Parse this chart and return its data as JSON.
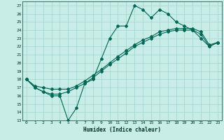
{
  "title": "",
  "xlabel": "Humidex (Indice chaleur)",
  "bg_color": "#c8ece6",
  "grid_color": "#a0d4cc",
  "line_color": "#006655",
  "xlim": [
    -0.5,
    23.5
  ],
  "ylim": [
    13,
    27.5
  ],
  "xticks": [
    0,
    1,
    2,
    3,
    4,
    5,
    6,
    7,
    8,
    9,
    10,
    11,
    12,
    13,
    14,
    15,
    16,
    17,
    18,
    19,
    20,
    21,
    22,
    23
  ],
  "yticks": [
    13,
    14,
    15,
    16,
    17,
    18,
    19,
    20,
    21,
    22,
    23,
    24,
    25,
    26,
    27
  ],
  "line1_x": [
    0,
    1,
    2,
    3,
    4,
    5,
    6,
    7,
    8,
    9,
    10,
    11,
    12,
    13,
    14,
    15,
    16,
    17,
    18,
    19,
    20,
    21,
    22,
    23
  ],
  "line1_y": [
    18,
    17,
    16.5,
    16,
    16,
    13,
    14.5,
    17.5,
    18,
    20.5,
    23,
    24.5,
    24.5,
    27,
    26.5,
    25.5,
    26.5,
    26,
    25,
    24.5,
    24,
    23,
    22,
    22.5
  ],
  "line2_x": [
    0,
    1,
    2,
    3,
    4,
    5,
    6,
    7,
    8,
    9,
    10,
    11,
    12,
    13,
    14,
    15,
    16,
    17,
    18,
    19,
    20,
    21,
    22,
    23
  ],
  "line2_y": [
    18,
    17.2,
    17.0,
    16.8,
    16.8,
    16.8,
    17.2,
    17.8,
    18.5,
    19.2,
    20.0,
    20.8,
    21.5,
    22.2,
    22.8,
    23.2,
    23.8,
    24.0,
    24.2,
    24.2,
    24.2,
    23.8,
    22.2,
    22.5
  ],
  "line3_x": [
    0,
    1,
    2,
    3,
    4,
    5,
    6,
    7,
    8,
    9,
    10,
    11,
    12,
    13,
    14,
    15,
    16,
    17,
    18,
    19,
    20,
    21,
    22,
    23
  ],
  "line3_y": [
    18,
    17.0,
    16.5,
    16.2,
    16.2,
    16.5,
    17.0,
    17.5,
    18.2,
    19.0,
    19.8,
    20.5,
    21.2,
    22.0,
    22.5,
    23.0,
    23.5,
    23.8,
    24.0,
    24.0,
    24.0,
    23.5,
    22.0,
    22.5
  ]
}
